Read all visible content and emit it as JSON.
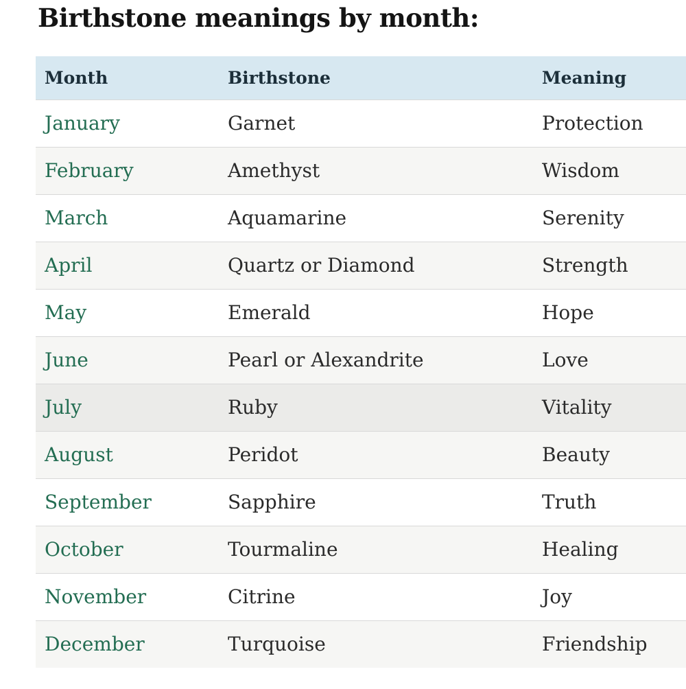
{
  "page_title": "Birthstone meanings by month:",
  "colors": {
    "header_bg": "#d7e8f1",
    "header_text": "#1c2f3a",
    "link_green": "#236d52",
    "body_text": "#2a2a2a",
    "row_alt_bg": "#f6f6f4",
    "row_highlight_bg": "#ebebe9",
    "divider": "#d8d8d8",
    "title_text": "#141414"
  },
  "table": {
    "columns": [
      "Month",
      "Birthstone",
      "Meaning"
    ],
    "rows": [
      {
        "month": "January",
        "birthstone": "Garnet",
        "meaning": "Protection"
      },
      {
        "month": "February",
        "birthstone": "Amethyst",
        "meaning": "Wisdom"
      },
      {
        "month": "March",
        "birthstone": "Aquamarine",
        "meaning": "Serenity"
      },
      {
        "month": "April",
        "birthstone": "Quartz or Diamond",
        "meaning": "Strength"
      },
      {
        "month": "May",
        "birthstone": "Emerald",
        "meaning": "Hope"
      },
      {
        "month": "June",
        "birthstone": "Pearl or Alexandrite",
        "meaning": "Love"
      },
      {
        "month": "July",
        "birthstone": "Ruby",
        "meaning": "Vitality",
        "highlighted": true
      },
      {
        "month": "August",
        "birthstone": "Peridot",
        "meaning": "Beauty"
      },
      {
        "month": "September",
        "birthstone": "Sapphire",
        "meaning": "Truth"
      },
      {
        "month": "October",
        "birthstone": "Tourmaline",
        "meaning": "Healing"
      },
      {
        "month": "November",
        "birthstone": "Citrine",
        "meaning": "Joy"
      },
      {
        "month": "December",
        "birthstone": "Turquoise",
        "meaning": "Friendship"
      }
    ]
  }
}
